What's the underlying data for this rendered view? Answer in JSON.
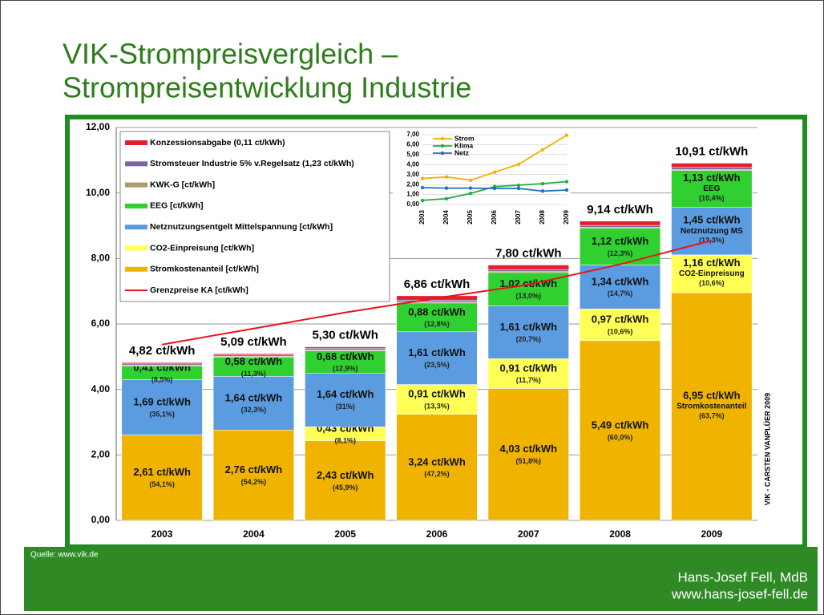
{
  "slide": {
    "title_lines": [
      "VIK-Strompreisvergleich –",
      "Strompreisentwicklung Industrie"
    ],
    "source": "Quelle: www.vik.de",
    "author": "Hans-Josef Fell, MdB",
    "website": "www.hans-josef-fell.de"
  },
  "chart_data": [
    {
      "type": "stacked_bar",
      "credit": "VIK - CARSTEN VANPLÜER 2009",
      "categories": [
        "2003",
        "2004",
        "2005",
        "2006",
        "2007",
        "2008",
        "2009"
      ],
      "ylim": [
        0,
        12
      ],
      "yticks": [
        {
          "value": 0,
          "label": "0,00"
        },
        {
          "value": 2,
          "label": "2,00"
        },
        {
          "value": 4,
          "label": "4,00"
        },
        {
          "value": 6,
          "label": "6,00"
        },
        {
          "value": 8,
          "label": "8,00"
        },
        {
          "value": 10,
          "label": "10,00"
        },
        {
          "value": 12,
          "label": "12,00"
        }
      ],
      "grid": true,
      "series": [
        {
          "name": "Stromkostenanteil [ct/kWh]",
          "color": "#f0b400",
          "values": [
            2.61,
            2.76,
            2.43,
            3.24,
            4.03,
            5.49,
            6.95
          ],
          "value_labels": [
            "2,61 ct/kWh",
            "2,76 ct/kWh",
            "2,43 ct/kWh",
            "3,24 ct/kWh",
            "4,03 ct/kWh",
            "5,49 ct/kWh",
            "6,95 ct/kWh"
          ],
          "share_labels": [
            "(54,1%)",
            "(54,2%)",
            "(45,9%)",
            "(47,2%)",
            "(51,8%)",
            "(60,0%)",
            "(63,7%)"
          ],
          "sub_labels": [
            null,
            null,
            null,
            null,
            null,
            null,
            "Stromkostenanteil"
          ]
        },
        {
          "name": "CO2-Einpreisung [ct/kWh]",
          "color": "#ffff55",
          "values": [
            null,
            null,
            0.43,
            0.91,
            0.91,
            0.97,
            1.16
          ],
          "value_labels": [
            null,
            null,
            "0,43 ct/kWh",
            "0,91 ct/kWh",
            "0,91 ct/kWh",
            "0,97 ct/kWh",
            "1,16 ct/kWh"
          ],
          "share_labels": [
            null,
            null,
            "(8,1%)",
            "(13,3%)",
            "(11,7%)",
            "(10,6%)",
            "(10,6%)"
          ],
          "sub_labels": [
            null,
            null,
            null,
            null,
            null,
            null,
            "CO2-Einpreisung"
          ]
        },
        {
          "name": "Netznutzungsentgelt Mittelspannung [ct/kWh]",
          "color": "#5b9be0",
          "values": [
            1.69,
            1.64,
            1.64,
            1.61,
            1.61,
            1.34,
            1.45
          ],
          "value_labels": [
            "1,69 ct/kWh",
            "1,64 ct/kWh",
            "1,64 ct/kWh",
            "1,61 ct/kWh",
            "1,61 ct/kWh",
            "1,34 ct/kWh",
            "1,45 ct/kWh"
          ],
          "share_labels": [
            "(35,1%)",
            "(32,3%)",
            "(31%)",
            "(23,5%)",
            "(20,7%)",
            "(14,7%)",
            "(13,3%)"
          ],
          "sub_labels": [
            null,
            null,
            null,
            null,
            null,
            null,
            "Netznutzung MS"
          ]
        },
        {
          "name": "EEG [ct/kWh]",
          "color": "#30d030",
          "values": [
            0.41,
            0.58,
            0.68,
            0.88,
            1.02,
            1.12,
            1.13
          ],
          "value_labels": [
            "0,41 ct/kWh",
            "0,58 ct/kWh",
            "0,68 ct/kWh",
            "0,88 ct/kWh",
            "1,02 ct/kWh",
            "1,12 ct/kWh",
            "1,13 ct/kWh"
          ],
          "share_labels": [
            "(8,5%)",
            "(11,3%)",
            "(12,9%)",
            "(12,8%)",
            "(13,0%)",
            "(12,3%)",
            "(10,4%)"
          ],
          "sub_labels": [
            null,
            null,
            null,
            null,
            null,
            null,
            "EEG"
          ]
        },
        {
          "name": "KWK-G [ct/kWh]",
          "color": "#b09a6a",
          "values": [
            0.03,
            0.03,
            0.03,
            0.03,
            0.03,
            0.03,
            0.03
          ]
        },
        {
          "name": "Stromsteuer Industrie 5% v.Regelsatz (1,23 ct/kWh)",
          "color": "#8064a2",
          "values": [
            0.04,
            0.04,
            0.05,
            0.06,
            0.06,
            0.06,
            0.06
          ]
        },
        {
          "name": "Konzessionsabgabe (0,11 ct/kWh)",
          "color": "#e0202e",
          "values": [
            0.04,
            0.04,
            0.04,
            0.13,
            0.14,
            0.13,
            0.13
          ]
        }
      ],
      "totals": [
        4.82,
        5.09,
        5.3,
        6.86,
        7.8,
        9.14,
        10.91
      ],
      "total_labels": [
        "4,82 ct/kWh",
        "5,09 ct/kWh",
        "5,30 ct/kWh",
        "6,86 ct/kWh",
        "7,80 ct/kWh",
        "9,14 ct/kWh",
        "10,91 ct/kWh"
      ],
      "line": {
        "name": "Grenzpreise KA [ct/kWh]",
        "color": "#e8141e",
        "values": [
          5.37,
          5.86,
          6.35,
          6.79,
          7.2,
          7.82,
          8.55
        ]
      }
    },
    {
      "type": "line",
      "categories": [
        "2003",
        "2004",
        "2005",
        "2006",
        "2007",
        "2008",
        "2009"
      ],
      "ylim": [
        0,
        7
      ],
      "yticks": [
        {
          "value": 0,
          "label": "0,00"
        },
        {
          "value": 1,
          "label": "1,00"
        },
        {
          "value": 2,
          "label": "2,00"
        },
        {
          "value": 3,
          "label": "3,00"
        },
        {
          "value": 4,
          "label": "4,00"
        },
        {
          "value": 5,
          "label": "5,00"
        },
        {
          "value": 6,
          "label": "6,00"
        },
        {
          "value": 7,
          "label": "7,00"
        }
      ],
      "grid": true,
      "series": [
        {
          "name": "Strom",
          "color": "#f5b000",
          "values": [
            2.61,
            2.76,
            2.43,
            3.24,
            4.03,
            5.49,
            6.95
          ]
        },
        {
          "name": "Klima",
          "color": "#22aa44",
          "values": [
            0.41,
            0.58,
            1.11,
            1.79,
            1.93,
            2.09,
            2.29
          ]
        },
        {
          "name": "Netz",
          "color": "#1f6fc0",
          "values": [
            1.69,
            1.64,
            1.64,
            1.61,
            1.61,
            1.34,
            1.45
          ]
        }
      ]
    }
  ]
}
